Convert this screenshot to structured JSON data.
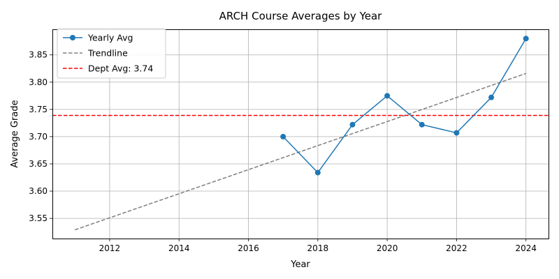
{
  "chart_data": {
    "type": "line",
    "title": "ARCH Course Averages by Year",
    "xlabel": "Year",
    "ylabel": "Average Grade",
    "xlim": [
      2010.35,
      2024.65
    ],
    "ylim": [
      3.513,
      3.897
    ],
    "xticks": [
      2012,
      2014,
      2016,
      2018,
      2020,
      2022,
      2024
    ],
    "yticks": [
      3.55,
      3.6,
      3.65,
      3.7,
      3.75,
      3.8,
      3.85
    ],
    "ytick_labels": [
      "3.55",
      "3.60",
      "3.65",
      "3.70",
      "3.75",
      "3.80",
      "3.85"
    ],
    "grid": true,
    "legend_position": "top-left",
    "series": [
      {
        "name": "Yearly Avg",
        "style": "solid-with-markers",
        "color": "#1f77b4",
        "x": [
          2017,
          2018,
          2019,
          2020,
          2021,
          2022,
          2023,
          2024
        ],
        "y": [
          3.7,
          3.634,
          3.722,
          3.775,
          3.722,
          3.707,
          3.772,
          3.88
        ]
      },
      {
        "name": "Trendline",
        "style": "dashed",
        "color": "#808080",
        "x": [
          2011,
          2024
        ],
        "y": [
          3.529,
          3.816
        ]
      },
      {
        "name": "Dept Avg: 3.74",
        "style": "dashed-horizontal",
        "color": "#ff0000",
        "y_value": 3.739
      }
    ]
  }
}
